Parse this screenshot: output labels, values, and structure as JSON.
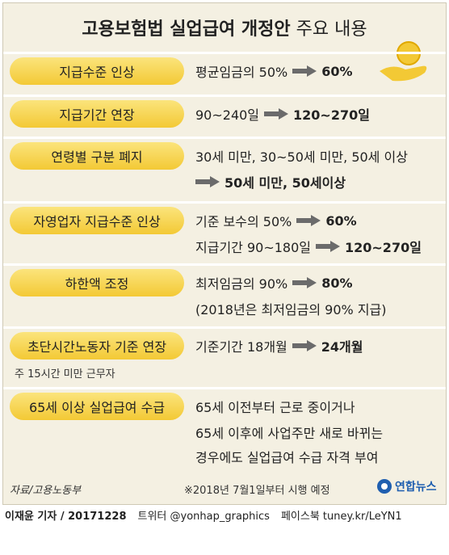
{
  "header": {
    "title_bold": "고용보험법 실업급여 개정안",
    "title_rest": " 주요 내용"
  },
  "rows": [
    {
      "label": "지급수준 인상",
      "lines": [
        {
          "before": "평균임금의 50%",
          "after": "60%"
        }
      ]
    },
    {
      "label": "지급기간 연장",
      "lines": [
        {
          "before": "90~240일",
          "after": "120~270일"
        }
      ]
    },
    {
      "label": "연령별 구분 폐지",
      "lines": [
        {
          "text": "30세 미만, 30~50세 미만, 50세 이상"
        },
        {
          "after": "50세 미만, 50세이상"
        }
      ]
    },
    {
      "label": "자영업자 지급수준 인상",
      "lines": [
        {
          "before": "기준 보수의 50%",
          "after": "60%"
        },
        {
          "before": "지급기간 90~180일",
          "after": "120~270일"
        }
      ]
    },
    {
      "label": "하한액 조정",
      "lines": [
        {
          "before": "최저임금의 90%",
          "after": "80%"
        },
        {
          "text": "(2018년은 최저임금의 90% 지급)"
        }
      ]
    },
    {
      "label": "초단시간노동자 기준 연장",
      "note": "주 15시간 미만 근무자",
      "lines": [
        {
          "before": "기준기간 18개월",
          "after": "24개월"
        }
      ]
    },
    {
      "label": "65세 이상 실업급여 수급",
      "lines": [
        {
          "text": "65세 이전부터 근로 중이거나"
        },
        {
          "text": "65세 이후에 사업주만 새로 바뀌는"
        },
        {
          "text": "경우에도 실업급여 수급 자격 부여"
        }
      ]
    }
  ],
  "source": "자료/고용노동부",
  "effective_note": "※2018년 7월1일부터 시행 예정",
  "logo": "연합뉴스",
  "footer": {
    "byline": "이재윤 기자 / 20171228",
    "twitter": "트위터 @yonhap_graphics",
    "facebook": "페이스북 tuney.kr/LeYN1"
  }
}
